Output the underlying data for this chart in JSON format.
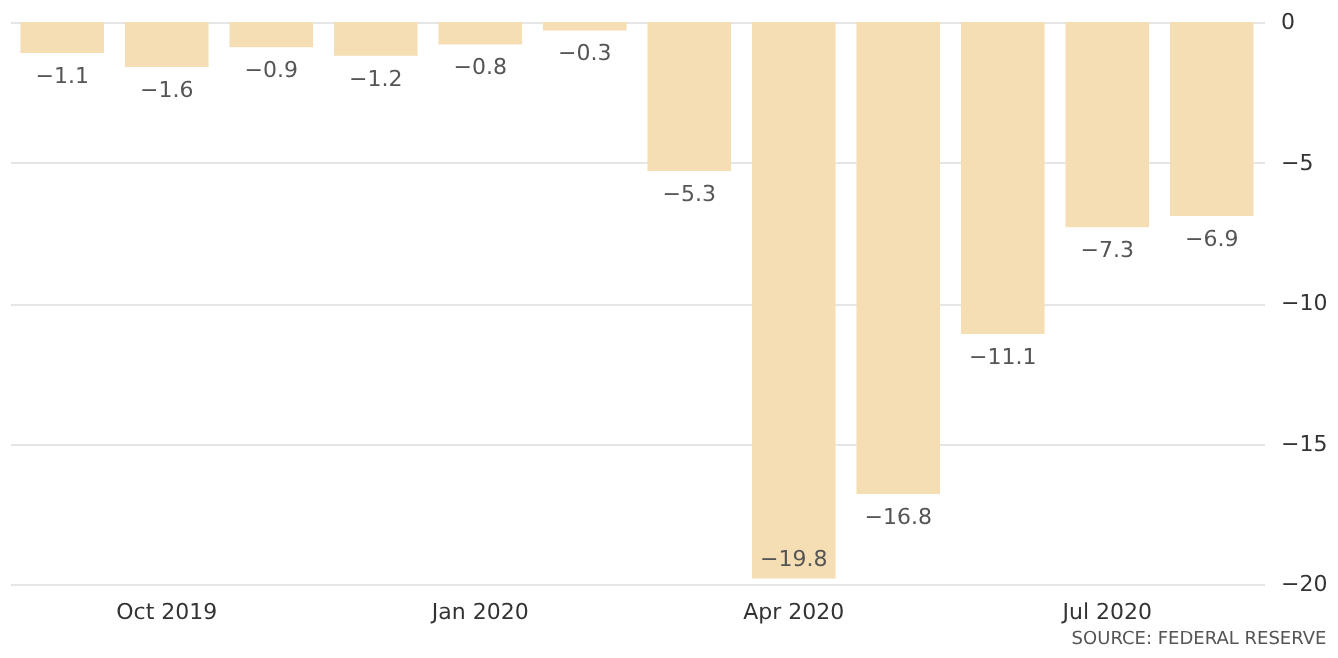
{
  "chart_data": {
    "type": "bar",
    "categories": [
      null,
      "Oct 2019",
      null,
      null,
      "Jan 2020",
      null,
      null,
      "Apr 2020",
      null,
      null,
      "Jul 2020",
      null
    ],
    "values": [
      -1.1,
      -1.6,
      -0.9,
      -1.2,
      -0.8,
      -0.3,
      -5.3,
      -19.8,
      -16.8,
      -11.1,
      -7.3,
      -6.9
    ],
    "color": "#f5deb3",
    "ylim": [
      -20,
      0
    ],
    "yticks": [
      0,
      -5,
      -10,
      -15,
      -20
    ],
    "grid": "y",
    "data_labels": true,
    "annotations": [
      "SOURCE: FEDERAL RESERVE"
    ]
  }
}
